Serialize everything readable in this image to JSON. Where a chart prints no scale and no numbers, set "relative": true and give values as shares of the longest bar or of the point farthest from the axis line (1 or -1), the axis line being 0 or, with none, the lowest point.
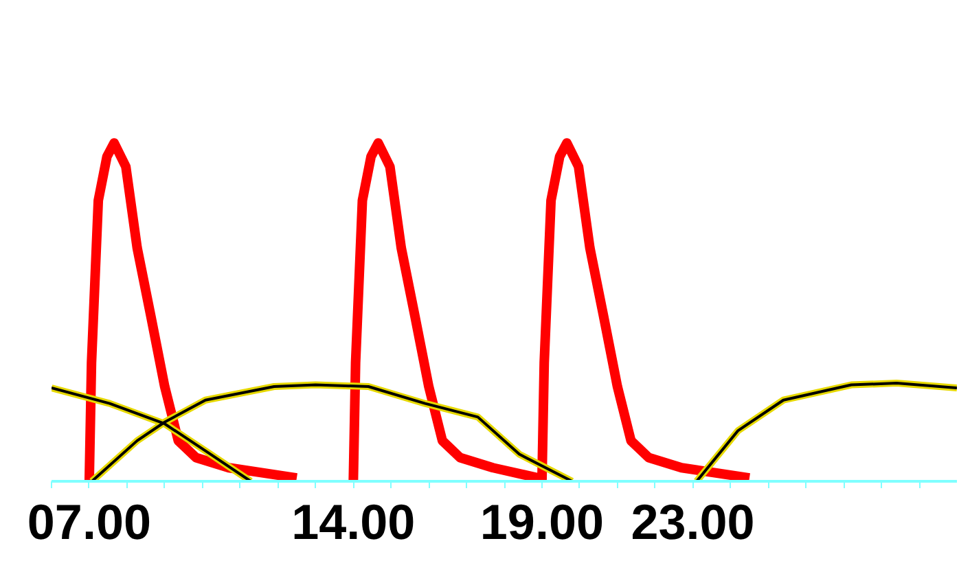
{
  "chart_data": {
    "type": "line",
    "relative": true,
    "xlim": [
      6,
      30
    ],
    "xticks": [
      {
        "value": 6,
        "label": null
      },
      {
        "value": 7,
        "label": "07.00"
      },
      {
        "value": 8,
        "label": null
      },
      {
        "value": 9,
        "label": null
      },
      {
        "value": 10,
        "label": null
      },
      {
        "value": 11,
        "label": null
      },
      {
        "value": 12,
        "label": null
      },
      {
        "value": 13,
        "label": null
      },
      {
        "value": 14,
        "label": "14.00"
      },
      {
        "value": 15,
        "label": null
      },
      {
        "value": 16,
        "label": null
      },
      {
        "value": 17,
        "label": null
      },
      {
        "value": 18,
        "label": null
      },
      {
        "value": 19,
        "label": "19.00"
      },
      {
        "value": 20,
        "label": null
      },
      {
        "value": 21,
        "label": null
      },
      {
        "value": 22,
        "label": null
      },
      {
        "value": 23,
        "label": "23.00"
      },
      {
        "value": 24,
        "label": null
      },
      {
        "value": 25,
        "label": null
      },
      {
        "value": 26,
        "label": null
      },
      {
        "value": 27,
        "label": null
      },
      {
        "value": 28,
        "label": null
      },
      {
        "value": 29,
        "label": null
      }
    ],
    "grid": false,
    "marker": "none",
    "line_style": "solid",
    "series": [
      {
        "color": "#ff0000",
        "x": [
          7.0,
          7.06,
          7.24,
          7.47,
          7.66,
          7.97,
          8.27,
          8.63,
          9.0,
          9.36,
          9.83,
          10.7,
          12.5,
          null,
          14.0,
          14.06,
          14.24,
          14.47,
          14.66,
          14.97,
          15.27,
          15.63,
          16.0,
          16.36,
          16.83,
          17.7,
          18.9,
          null,
          19.0,
          19.06,
          19.24,
          19.47,
          19.66,
          19.97,
          20.27,
          20.63,
          21.0,
          21.36,
          21.83,
          22.7,
          24.5
        ],
        "values": [
          0,
          0.35,
          0.83,
          0.96,
          1.0,
          0.93,
          0.69,
          0.49,
          0.28,
          0.12,
          0.07,
          0.04,
          0.01,
          null,
          0,
          0.35,
          0.83,
          0.96,
          1.0,
          0.93,
          0.69,
          0.49,
          0.28,
          0.12,
          0.07,
          0.04,
          0.01,
          null,
          0,
          0.35,
          0.83,
          0.96,
          1.0,
          0.93,
          0.69,
          0.49,
          0.28,
          0.12,
          0.07,
          0.04,
          0.01
        ]
      },
      {
        "color": "#000000",
        "x": [
          6.0,
          7.54,
          9.0,
          10.08,
          11.28,
          null,
          7.07,
          8.27,
          9.0,
          10.08,
          11.9,
          13.0,
          14.4,
          15.9,
          17.3,
          18.4,
          19.8,
          null,
          23.1,
          24.2,
          25.4,
          27.2,
          28.4,
          30.0
        ],
        "values": [
          0.276,
          0.23,
          0.17,
          0.09,
          0,
          null,
          0,
          0.12,
          0.175,
          0.24,
          0.28,
          0.285,
          0.28,
          0.23,
          0.19,
          0.08,
          0,
          null,
          0,
          0.15,
          0.24,
          0.285,
          0.29,
          0.276
        ]
      }
    ]
  }
}
